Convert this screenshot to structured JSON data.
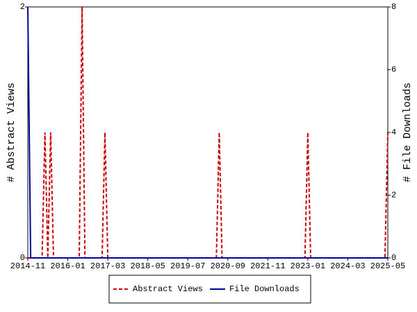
{
  "chart_data": {
    "type": "line",
    "categories": [
      "2014-11",
      null,
      null,
      null,
      null,
      null,
      null,
      null,
      null,
      null,
      null,
      null,
      null,
      null,
      "2016-01",
      null,
      null,
      null,
      null,
      null,
      null,
      null,
      null,
      null,
      null,
      null,
      null,
      null,
      "2017-03",
      null,
      null,
      null,
      null,
      null,
      null,
      null,
      null,
      null,
      null,
      null,
      null,
      null,
      "2018-05",
      null,
      null,
      null,
      null,
      null,
      null,
      null,
      null,
      null,
      null,
      null,
      null,
      null,
      "2019-07",
      null,
      null,
      null,
      null,
      null,
      null,
      null,
      null,
      null,
      null,
      null,
      null,
      null,
      "2020-09",
      null,
      null,
      null,
      null,
      null,
      null,
      null,
      null,
      null,
      null,
      null,
      null,
      null,
      "2021-11",
      null,
      null,
      null,
      null,
      null,
      null,
      null,
      null,
      null,
      null,
      null,
      null,
      null,
      "2023-01",
      null,
      null,
      null,
      null,
      null,
      null,
      null,
      null,
      null,
      null,
      null,
      null,
      null,
      "2024-03",
      null,
      null,
      null,
      null,
      null,
      null,
      null,
      null,
      null,
      null,
      null,
      null,
      null,
      "2025-05"
    ],
    "series": [
      {
        "name": "Abstract Views",
        "color": "#cc0000",
        "axis": "y",
        "dashed": true,
        "values": [
          0,
          0,
          0,
          0,
          0,
          0,
          1,
          0,
          1,
          0,
          0,
          0,
          0,
          0,
          0,
          0,
          0,
          0,
          0,
          2,
          0,
          0,
          0,
          0,
          0,
          0,
          0,
          1,
          0,
          0,
          0,
          0,
          0,
          0,
          0,
          0,
          0,
          0,
          0,
          0,
          0,
          0,
          0,
          0,
          0,
          0,
          0,
          0,
          0,
          0,
          0,
          0,
          0,
          0,
          0,
          0,
          0,
          0,
          0,
          0,
          0,
          0,
          0,
          0,
          0,
          0,
          0,
          1,
          0,
          0,
          0,
          0,
          0,
          0,
          0,
          0,
          0,
          0,
          0,
          0,
          0,
          0,
          0,
          0,
          0,
          0,
          0,
          0,
          0,
          0,
          0,
          0,
          0,
          0,
          0,
          0,
          0,
          0,
          1,
          0,
          0,
          0,
          0,
          0,
          0,
          0,
          0,
          0,
          0,
          0,
          0,
          0,
          0,
          0,
          0,
          0,
          0,
          0,
          0,
          0,
          0,
          0,
          0,
          0,
          0,
          0,
          1
        ]
      },
      {
        "name": "File Downloads",
        "color": "#000099",
        "axis": "y2",
        "dashed": false,
        "values": [
          8,
          0,
          0,
          0,
          0,
          0,
          0,
          0,
          0,
          0,
          0,
          0,
          0,
          0,
          0,
          0,
          0,
          0,
          0,
          0,
          0,
          0,
          0,
          0,
          0,
          0,
          0,
          0,
          0,
          0,
          0,
          0,
          0,
          0,
          0,
          0,
          0,
          0,
          0,
          0,
          0,
          0,
          0,
          0,
          0,
          0,
          0,
          0,
          0,
          0,
          0,
          0,
          0,
          0,
          0,
          0,
          0,
          0,
          0,
          0,
          0,
          0,
          0,
          0,
          0,
          0,
          0,
          0,
          0,
          0,
          0,
          0,
          0,
          0,
          0,
          0,
          0,
          0,
          0,
          0,
          0,
          0,
          0,
          0,
          0,
          0,
          0,
          0,
          0,
          0,
          0,
          0,
          0,
          0,
          0,
          0,
          0,
          0,
          0,
          0,
          0,
          0,
          0,
          0,
          0,
          0,
          0,
          0,
          0,
          0,
          0,
          0,
          0,
          0,
          0,
          0,
          0,
          0,
          0,
          0,
          0,
          0,
          0,
          0,
          0,
          0,
          0
        ]
      }
    ],
    "ylabel": "# Abstract Views",
    "y2label": "# File Downloads",
    "ylim": [
      0,
      2
    ],
    "yticks": [
      0,
      2
    ],
    "y2lim": [
      0,
      8
    ],
    "y2ticks": [
      0,
      2,
      4,
      6,
      8
    ],
    "legend": "bottom"
  }
}
